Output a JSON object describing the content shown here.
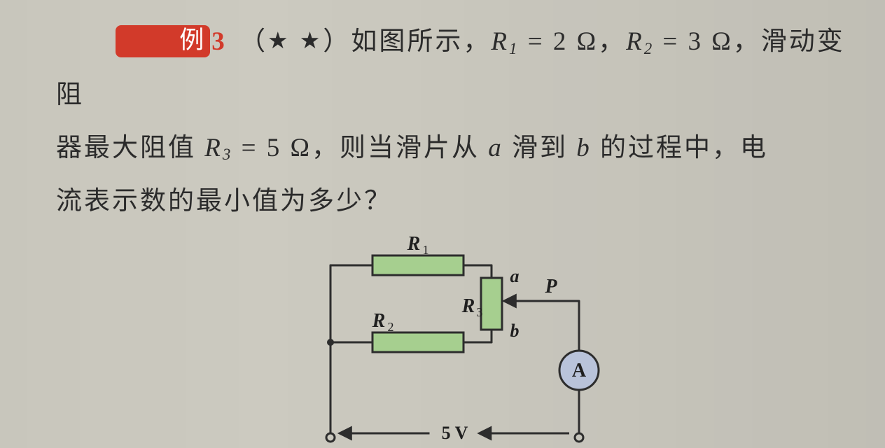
{
  "problem": {
    "label_text": "例",
    "number": "3",
    "stars": "★ ★",
    "line1_a": "如图所示，",
    "r1_name": "R",
    "r1_sub": "1",
    "r1_eq": " = 2 Ω，",
    "r2_name": "R",
    "r2_sub": "2",
    "r2_eq": " = 3 Ω，",
    "line1_b": "滑动变阻",
    "line2_a": "器最大阻值 ",
    "r3_name": "R",
    "r3_sub": "3",
    "r3_eq": " = 5 Ω，",
    "line2_b": "则当滑片从 ",
    "a_var": "a",
    "line2_c": " 滑到 ",
    "b_var": "b",
    "line2_d": " 的过程中，电",
    "line3": "流表示数的最小值为多少？"
  },
  "diagram": {
    "R1_label_r": "R",
    "R1_label_s": "1",
    "R2_label_r": "R",
    "R2_label_s": "2",
    "R3_label_r": "R",
    "R3_label_s": "3",
    "a_label": "a",
    "b_label": "b",
    "P_label": "P",
    "A_label": "A",
    "voltage": "5 V",
    "colors": {
      "wire": "#2d2d2d",
      "resistor_fill": "#a6cf8f",
      "resistor_stroke": "#2d2d2d",
      "ammeter_fill": "#b9c3da",
      "ammeter_stroke": "#2d2d2d",
      "text": "#1f1f1f",
      "node_fill": "#2d2d2d"
    }
  }
}
